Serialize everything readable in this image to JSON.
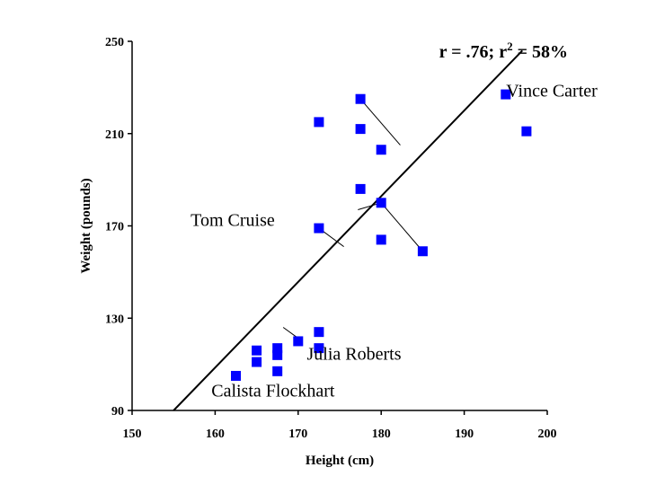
{
  "chart_data": {
    "type": "scatter",
    "xlabel": "Height (cm)",
    "ylabel": "Weight (pounds)",
    "xlim": [
      150,
      200
    ],
    "ylim": [
      90,
      250
    ],
    "xticks": [
      150,
      160,
      170,
      180,
      190,
      200
    ],
    "yticks": [
      90,
      130,
      170,
      210,
      250
    ],
    "stat_text": "r = .76; r",
    "stat_sup": "2",
    "stat_tail": " = 58%",
    "marker_color": "#0000ff",
    "points": [
      {
        "x": 162.5,
        "y": 105
      },
      {
        "x": 165,
        "y": 111
      },
      {
        "x": 165,
        "y": 116
      },
      {
        "x": 167.5,
        "y": 107
      },
      {
        "x": 167.5,
        "y": 114
      },
      {
        "x": 167.5,
        "y": 117
      },
      {
        "x": 170,
        "y": 120
      },
      {
        "x": 172.5,
        "y": 117
      },
      {
        "x": 172.5,
        "y": 124
      },
      {
        "x": 172.5,
        "y": 169
      },
      {
        "x": 172.5,
        "y": 215
      },
      {
        "x": 177.5,
        "y": 225
      },
      {
        "x": 177.5,
        "y": 212
      },
      {
        "x": 177.5,
        "y": 186
      },
      {
        "x": 180,
        "y": 203
      },
      {
        "x": 180,
        "y": 180
      },
      {
        "x": 180,
        "y": 164
      },
      {
        "x": 185,
        "y": 159
      },
      {
        "x": 195,
        "y": 227
      },
      {
        "x": 197.5,
        "y": 211
      }
    ],
    "regression_line": {
      "x1": 155,
      "y1": 90,
      "x2": 197,
      "y2": 246
    },
    "residual_lines": [
      {
        "x1": 177.5,
        "y1": 225,
        "x2": 182.3,
        "y2": 205
      },
      {
        "x1": 180,
        "y1": 180,
        "x2": 177.2,
        "y2": 177
      },
      {
        "x1": 185,
        "y1": 159,
        "x2": 180,
        "y2": 180
      },
      {
        "x1": 172.5,
        "y1": 169,
        "x2": 175.5,
        "y2": 161
      },
      {
        "x1": 170.5,
        "y1": 120,
        "x2": 168.2,
        "y2": 126
      }
    ],
    "annotations": [
      {
        "text": "Vince Carter",
        "x": 197,
        "y": 226
      },
      {
        "text": "Tom Cruise",
        "x": 159,
        "y": 170
      },
      {
        "text": "Julia Roberts",
        "x": 173,
        "y": 112
      },
      {
        "text": "Calista Flockhart",
        "x": 161.5,
        "y": 96
      }
    ]
  }
}
